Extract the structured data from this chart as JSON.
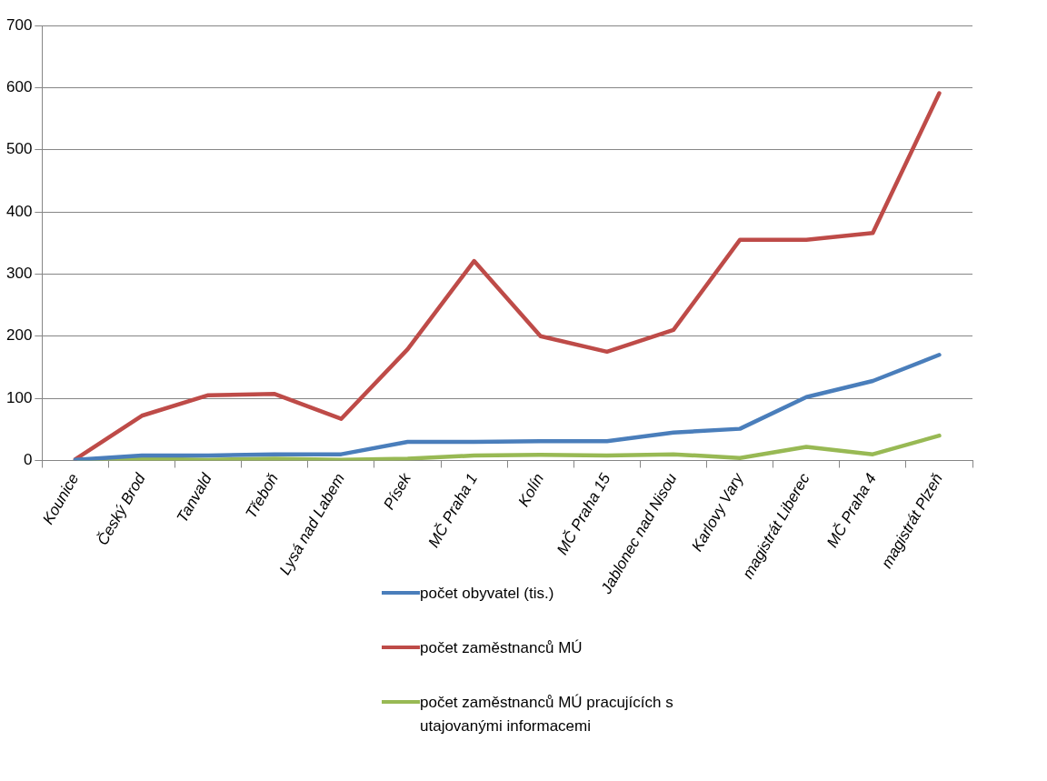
{
  "chart_data": {
    "type": "line",
    "categories": [
      "Kounice",
      "Český Brod",
      "Tanvald",
      "Třeboň",
      "Lysá nad Labem",
      "Písek",
      "MČ Praha 1",
      "Kolín",
      "MČ Praha 15",
      "Jablonec nad Nisou",
      "Karlovy Vary",
      "magistrát Liberec",
      "MČ Praha 4",
      "magistrát Plzeň"
    ],
    "series": [
      {
        "name": "počet obyvatel (tis.)",
        "color": "#4a7ebb",
        "values": [
          1,
          8,
          8,
          10,
          10,
          30,
          30,
          31,
          31,
          45,
          51,
          102,
          128,
          170
        ]
      },
      {
        "name": "počet zaměstnanců MÚ",
        "color": "#be4b48",
        "values": [
          2,
          72,
          105,
          107,
          67,
          179,
          321,
          200,
          175,
          210,
          355,
          355,
          366,
          591
        ]
      },
      {
        "name": "počet zaměstnanců MÚ pracujících s utajovanými informacemi",
        "color": "#98b954",
        "values": [
          0,
          3,
          1,
          3,
          1,
          3,
          8,
          9,
          8,
          10,
          4,
          22,
          10,
          40
        ]
      }
    ],
    "ylim": [
      0,
      700
    ],
    "yticks": [
      0,
      100,
      200,
      300,
      400,
      500,
      600,
      700
    ],
    "grid": "y",
    "legend": "bottom",
    "marker": "none",
    "line_style": "solid"
  }
}
